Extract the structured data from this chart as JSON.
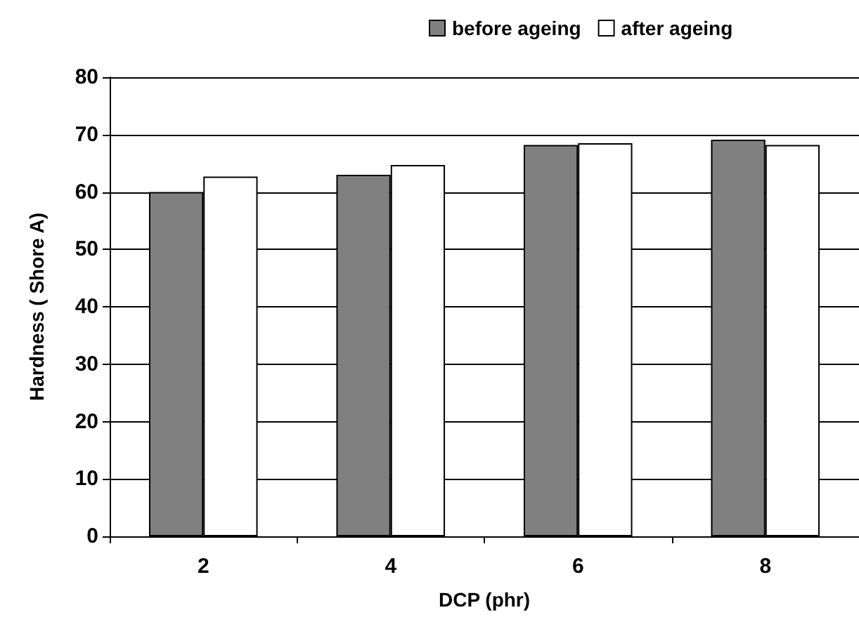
{
  "chart_data": {
    "type": "bar",
    "xlabel": "DCP (phr)",
    "ylabel": "Hardness ( Shore A)",
    "categories": [
      "2",
      "4",
      "6",
      "8"
    ],
    "series": [
      {
        "name": "before ageing",
        "color": "#808080",
        "values": [
          60,
          63,
          68.2,
          69.1
        ]
      },
      {
        "name": "after ageing",
        "color": "#ffffff",
        "values": [
          62.7,
          64.7,
          68.5,
          68.2
        ]
      }
    ],
    "ylim": [
      0,
      80
    ],
    "yticks": [
      0,
      10,
      20,
      30,
      40,
      50,
      60,
      70,
      80
    ],
    "grid": "y",
    "legend": "top"
  }
}
